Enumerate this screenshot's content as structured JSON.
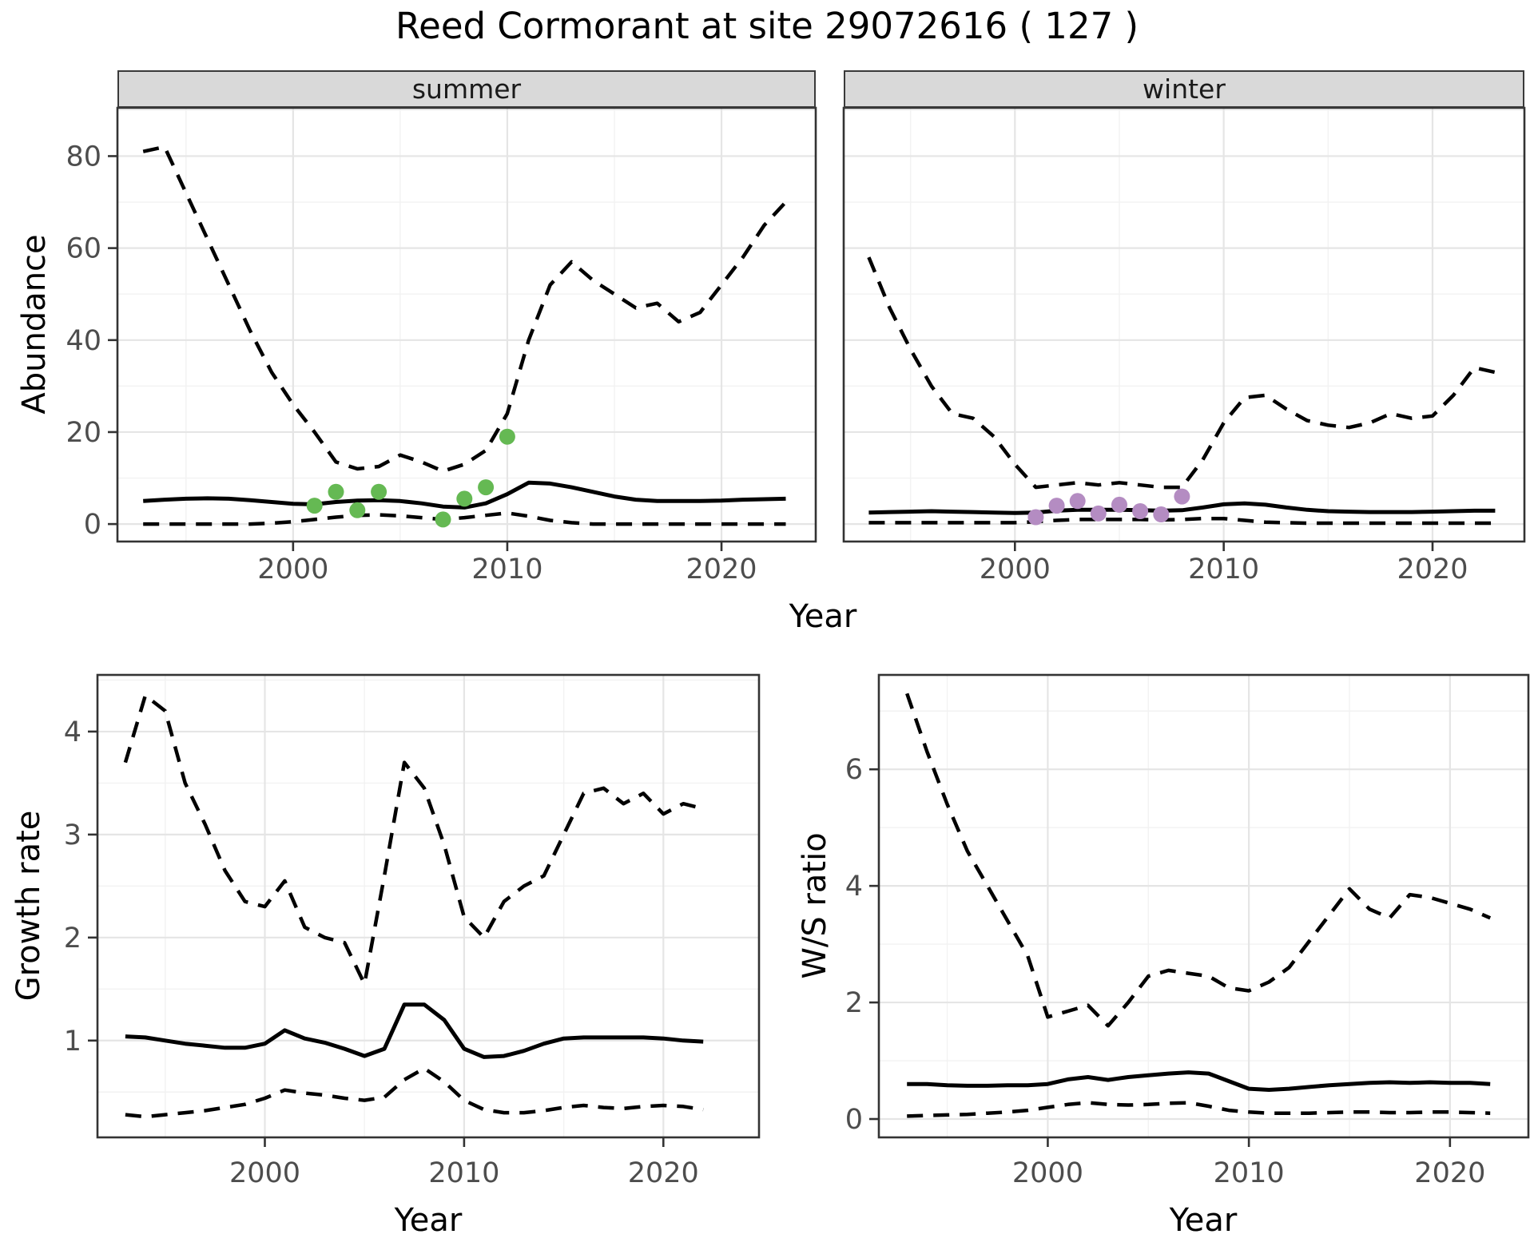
{
  "title": "Reed Cormorant at site 29072616 ( 127 )",
  "facets": [
    {
      "label": "summer"
    },
    {
      "label": "winter"
    }
  ],
  "axis_labels": {
    "x": "Year",
    "abundance": "Abundance",
    "growth": "Growth rate",
    "ws": "W/S ratio"
  },
  "colors": {
    "summer_points": "#65b953",
    "winter_points": "#b48cc2",
    "line": "#000000",
    "strip_bg": "#d9d9d9",
    "grid_major": "#e5e5e5",
    "grid_minor": "#f2f2f2",
    "panel_border": "#333333",
    "tick_mark": "#333333",
    "tick_text": "#4d4d4d"
  },
  "chart_data": [
    {
      "id": "abundance-summer",
      "type": "line",
      "facet": "summer",
      "xlabel": "Year",
      "ylabel": "Abundance",
      "x": [
        1993,
        1994,
        1995,
        1996,
        1997,
        1998,
        1999,
        2000,
        2001,
        2002,
        2003,
        2004,
        2005,
        2006,
        2007,
        2008,
        2009,
        2010,
        2011,
        2012,
        2013,
        2014,
        2015,
        2016,
        2017,
        2018,
        2019,
        2020,
        2021,
        2022,
        2023
      ],
      "series": [
        {
          "name": "upper_95ci",
          "style": "dashed",
          "values": [
            81,
            82,
            72,
            62,
            52,
            42,
            33,
            26,
            20,
            13.5,
            12,
            12.5,
            15,
            13.5,
            11.5,
            13,
            16,
            24,
            40,
            52,
            57,
            53,
            50,
            47,
            48,
            44,
            46,
            52,
            58,
            65,
            70
          ]
        },
        {
          "name": "median",
          "style": "solid",
          "values": [
            5,
            5.3,
            5.5,
            5.6,
            5.5,
            5.2,
            4.8,
            4.4,
            4.3,
            4.8,
            5.1,
            5.2,
            5,
            4.5,
            3.8,
            3.6,
            4.5,
            6.5,
            9,
            8.8,
            8,
            7,
            6,
            5.3,
            5,
            5,
            5,
            5.1,
            5.3,
            5.4,
            5.5
          ]
        },
        {
          "name": "lower_95ci",
          "style": "dashed",
          "values": [
            0,
            0,
            0,
            0,
            0,
            0,
            0.2,
            0.5,
            1,
            1.5,
            1.9,
            2,
            1.8,
            1.4,
            1,
            1.4,
            1.9,
            2.4,
            1.7,
            0.8,
            0.3,
            0,
            0,
            0,
            0,
            0,
            0,
            0,
            0,
            0,
            0
          ]
        }
      ],
      "points": {
        "name": "observed_counts",
        "color_key": "summer_points",
        "x": [
          2001,
          2002,
          2003,
          2004,
          2007,
          2008,
          2009,
          2010
        ],
        "y": [
          4,
          7,
          3,
          7,
          1,
          5.5,
          8,
          19
        ]
      },
      "xlim": [
        1991.8,
        2024.4
      ],
      "ylim": [
        -3.8,
        90.5
      ],
      "xticks": [
        2000,
        2010,
        2020
      ],
      "yticks": [
        0,
        20,
        40,
        60,
        80
      ],
      "xminor": [
        1995,
        2005,
        2015
      ],
      "yminor": [
        10,
        30,
        50,
        70,
        90
      ]
    },
    {
      "id": "abundance-winter",
      "type": "line",
      "facet": "winter",
      "xlabel": "Year",
      "ylabel": "Abundance",
      "x": [
        1993,
        1994,
        1995,
        1996,
        1997,
        1998,
        1999,
        2000,
        2001,
        2002,
        2003,
        2004,
        2005,
        2006,
        2007,
        2008,
        2009,
        2010,
        2011,
        2012,
        2013,
        2014,
        2015,
        2016,
        2017,
        2018,
        2019,
        2020,
        2021,
        2022,
        2023
      ],
      "series": [
        {
          "name": "upper_95ci",
          "style": "dashed",
          "values": [
            58,
            47,
            38,
            30,
            24,
            23,
            19,
            13,
            8,
            8.5,
            9,
            8.5,
            9,
            8.5,
            8,
            8,
            14,
            22,
            27.5,
            28,
            25,
            22.5,
            21.5,
            21,
            22,
            24,
            23,
            23.5,
            28,
            34,
            33
          ]
        },
        {
          "name": "median",
          "style": "solid",
          "values": [
            2.5,
            2.6,
            2.7,
            2.8,
            2.7,
            2.6,
            2.5,
            2.4,
            2.5,
            2.9,
            3.1,
            3.1,
            3.1,
            3,
            2.9,
            3,
            3.6,
            4.3,
            4.5,
            4.2,
            3.6,
            3.1,
            2.8,
            2.7,
            2.6,
            2.6,
            2.6,
            2.7,
            2.8,
            2.9,
            2.9
          ]
        },
        {
          "name": "lower_95ci",
          "style": "dashed",
          "values": [
            0.3,
            0.3,
            0.3,
            0.3,
            0.3,
            0.3,
            0.3,
            0.3,
            0.5,
            0.8,
            1,
            1,
            1,
            1,
            0.9,
            1,
            1.2,
            1.2,
            0.8,
            0.4,
            0.3,
            0.2,
            0.2,
            0.2,
            0.2,
            0.2,
            0.2,
            0.2,
            0.2,
            0.2,
            0.2
          ]
        }
      ],
      "points": {
        "name": "observed_counts",
        "color_key": "winter_points",
        "x": [
          2001,
          2002,
          2003,
          2004,
          2005,
          2006,
          2007,
          2008
        ],
        "y": [
          1.5,
          4,
          5,
          2.3,
          4.2,
          2.8,
          2.1,
          6
        ]
      },
      "xlim": [
        1991.8,
        2024.4
      ],
      "ylim": [
        -3.8,
        90.5
      ],
      "xticks": [
        2000,
        2010,
        2020
      ],
      "yticks": [],
      "xminor": [
        1995,
        2005,
        2015
      ],
      "yminor": [
        10,
        30,
        50,
        70,
        90
      ]
    },
    {
      "id": "growth-rate",
      "type": "line",
      "facet": null,
      "xlabel": "Year",
      "ylabel": "Growth rate",
      "x": [
        1993,
        1994,
        1995,
        1996,
        1997,
        1998,
        1999,
        2000,
        2001,
        2002,
        2003,
        2004,
        2005,
        2006,
        2007,
        2008,
        2009,
        2010,
        2011,
        2012,
        2013,
        2014,
        2015,
        2016,
        2017,
        2018,
        2019,
        2020,
        2021,
        2022
      ],
      "series": [
        {
          "name": "upper_95ci",
          "style": "dashed",
          "values": [
            3.7,
            4.35,
            4.2,
            3.5,
            3.1,
            2.65,
            2.35,
            2.3,
            2.55,
            2.1,
            2,
            1.95,
            1.55,
            2.6,
            3.7,
            3.45,
            2.9,
            2.2,
            2,
            2.35,
            2.5,
            2.6,
            3,
            3.4,
            3.45,
            3.3,
            3.4,
            3.2,
            3.3,
            3.25
          ]
        },
        {
          "name": "median",
          "style": "solid",
          "values": [
            1.04,
            1.03,
            1,
            0.97,
            0.95,
            0.93,
            0.93,
            0.97,
            1.1,
            1.02,
            0.98,
            0.92,
            0.85,
            0.92,
            1.35,
            1.35,
            1.2,
            0.92,
            0.84,
            0.85,
            0.9,
            0.97,
            1.02,
            1.03,
            1.03,
            1.03,
            1.03,
            1.02,
            1,
            0.99
          ]
        },
        {
          "name": "lower_95ci",
          "style": "dashed",
          "values": [
            0.28,
            0.26,
            0.28,
            0.3,
            0.32,
            0.35,
            0.38,
            0.44,
            0.52,
            0.49,
            0.47,
            0.44,
            0.42,
            0.45,
            0.62,
            0.73,
            0.6,
            0.42,
            0.33,
            0.3,
            0.3,
            0.32,
            0.35,
            0.37,
            0.35,
            0.34,
            0.36,
            0.37,
            0.36,
            0.33
          ]
        }
      ],
      "points": null,
      "xlim": [
        1991.6,
        2024.8
      ],
      "ylim": [
        0.06,
        4.55
      ],
      "xticks": [
        2000,
        2010,
        2020
      ],
      "yticks": [
        1,
        2,
        3,
        4
      ],
      "xminor": [
        1995,
        2005,
        2015
      ],
      "yminor": [
        0.5,
        1.5,
        2.5,
        3.5,
        4.5
      ]
    },
    {
      "id": "ws-ratio",
      "type": "line",
      "facet": null,
      "xlabel": "Year",
      "ylabel": "W/S ratio",
      "x": [
        1993,
        1994,
        1995,
        1996,
        1997,
        1998,
        1999,
        2000,
        2001,
        2002,
        2003,
        2004,
        2005,
        2006,
        2007,
        2008,
        2009,
        2010,
        2011,
        2012,
        2013,
        2014,
        2015,
        2016,
        2017,
        2018,
        2019,
        2020,
        2021,
        2022
      ],
      "series": [
        {
          "name": "upper_95ci",
          "style": "dashed",
          "values": [
            7.3,
            6.3,
            5.4,
            4.6,
            4,
            3.4,
            2.8,
            1.75,
            1.85,
            1.95,
            1.6,
            2,
            2.45,
            2.55,
            2.5,
            2.45,
            2.25,
            2.2,
            2.35,
            2.6,
            3.05,
            3.5,
            3.95,
            3.6,
            3.45,
            3.85,
            3.8,
            3.7,
            3.6,
            3.45
          ]
        },
        {
          "name": "median",
          "style": "solid",
          "values": [
            0.6,
            0.6,
            0.58,
            0.57,
            0.57,
            0.58,
            0.58,
            0.6,
            0.68,
            0.72,
            0.67,
            0.72,
            0.75,
            0.78,
            0.8,
            0.78,
            0.65,
            0.52,
            0.5,
            0.52,
            0.55,
            0.58,
            0.6,
            0.62,
            0.63,
            0.62,
            0.63,
            0.62,
            0.62,
            0.6
          ]
        },
        {
          "name": "lower_95ci",
          "style": "dashed",
          "values": [
            0.05,
            0.06,
            0.07,
            0.08,
            0.1,
            0.12,
            0.15,
            0.2,
            0.25,
            0.28,
            0.25,
            0.24,
            0.25,
            0.27,
            0.28,
            0.22,
            0.15,
            0.12,
            0.1,
            0.1,
            0.1,
            0.11,
            0.12,
            0.12,
            0.11,
            0.11,
            0.12,
            0.12,
            0.11,
            0.1
          ]
        }
      ],
      "points": null,
      "xlim": [
        1991.6,
        2023.9
      ],
      "ylim": [
        -0.315,
        7.62
      ],
      "xticks": [
        2000,
        2010,
        2020
      ],
      "yticks": [
        0,
        2,
        4,
        6
      ],
      "xminor": [
        1995,
        2005,
        2015
      ],
      "yminor": [
        1,
        3,
        5,
        7
      ]
    }
  ]
}
